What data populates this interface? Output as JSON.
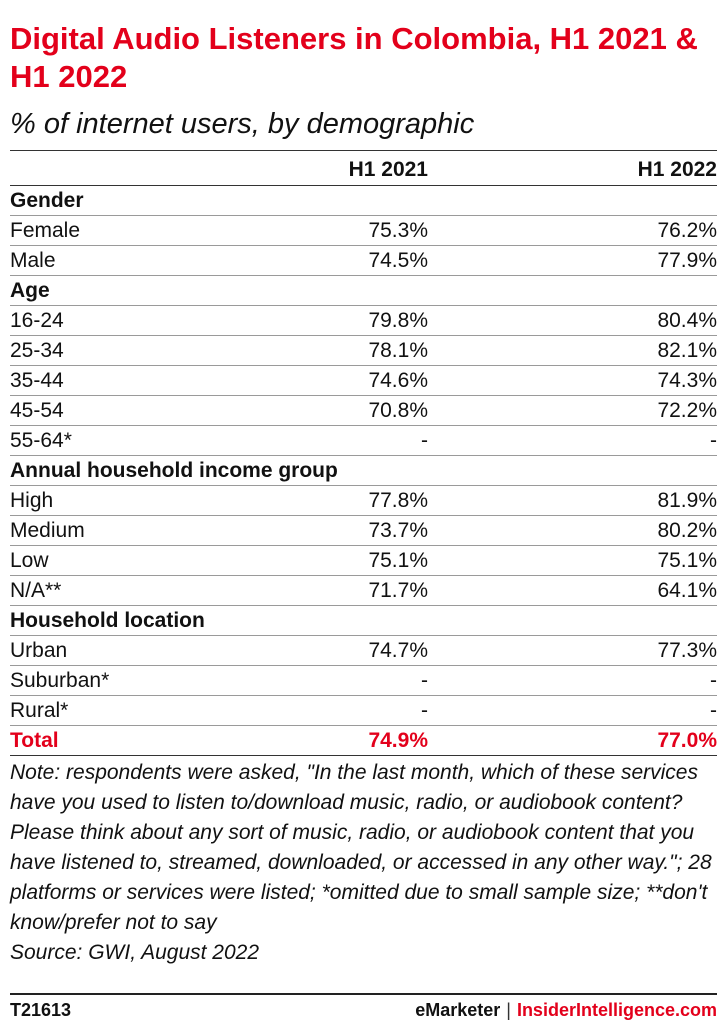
{
  "title": "Digital Audio Listeners in Colombia, H1 2021 & H1 2022",
  "subtitle": "% of internet users, by demographic",
  "chart_data": {
    "type": "table",
    "columns": [
      "",
      "H1 2021",
      "H1 2022"
    ],
    "rows": [
      {
        "label": "Gender",
        "group": true
      },
      {
        "label": "Female",
        "values": [
          "75.3%",
          "76.2%"
        ]
      },
      {
        "label": "Male",
        "values": [
          "74.5%",
          "77.9%"
        ]
      },
      {
        "label": "Age",
        "group": true
      },
      {
        "label": "16-24",
        "values": [
          "79.8%",
          "80.4%"
        ]
      },
      {
        "label": "25-34",
        "values": [
          "78.1%",
          "82.1%"
        ]
      },
      {
        "label": "35-44",
        "values": [
          "74.6%",
          "74.3%"
        ]
      },
      {
        "label": "45-54",
        "values": [
          "70.8%",
          "72.2%"
        ]
      },
      {
        "label": "55-64*",
        "values": [
          "-",
          "-"
        ]
      },
      {
        "label": "Annual household income group",
        "group": true
      },
      {
        "label": "High",
        "values": [
          "77.8%",
          "81.9%"
        ]
      },
      {
        "label": "Medium",
        "values": [
          "73.7%",
          "80.2%"
        ]
      },
      {
        "label": "Low",
        "values": [
          "75.1%",
          "75.1%"
        ]
      },
      {
        "label": "N/A**",
        "values": [
          "71.7%",
          "64.1%"
        ]
      },
      {
        "label": "Household location",
        "group": true
      },
      {
        "label": "Urban",
        "values": [
          "74.7%",
          "77.3%"
        ]
      },
      {
        "label": "Suburban*",
        "values": [
          "-",
          "-"
        ]
      },
      {
        "label": "Rural*",
        "values": [
          "-",
          "-"
        ]
      },
      {
        "label": "Total",
        "values": [
          "74.9%",
          "77.0%"
        ],
        "total": true
      }
    ]
  },
  "note": "Note: respondents were asked, \"In the last month, which of these services have you used to listen to/download music, radio, or audiobook content? Please think about any sort of music, radio, or audiobook content that you have listened to, streamed, downloaded, or accessed in any other way.\"; 28 platforms or services were listed; *omitted due to small sample size; **don't know/prefer not to say",
  "source": "Source: GWI, August 2022",
  "footer": {
    "chart_id": "T21613",
    "brand": "eMarketer",
    "separator": "|",
    "brand2": "InsiderIntelligence.com"
  },
  "colors": {
    "accent": "#e3001b",
    "text": "#111111"
  }
}
